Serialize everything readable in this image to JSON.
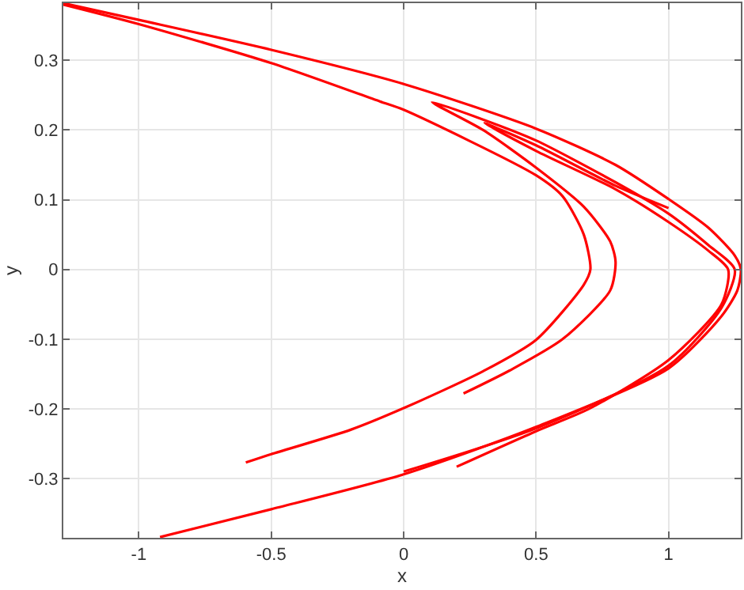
{
  "chart_data": {
    "type": "line",
    "xlabel": "x",
    "ylabel": "y",
    "xlim": [
      -1.285,
      1.273
    ],
    "ylim": [
      -0.385,
      0.382
    ],
    "xticks": [
      -1,
      -0.5,
      0,
      0.5,
      1
    ],
    "yticks": [
      -0.3,
      -0.2,
      -0.1,
      0,
      0.1,
      0.2,
      0.3
    ],
    "grid": true,
    "marker": "none",
    "line_style": "solid",
    "series": [
      {
        "color": "#ff0000",
        "x": [
          -1.285,
          -1,
          -0.5,
          0,
          0.5,
          0.8,
          1,
          1.15,
          1.25,
          1.273,
          1.26,
          1.2,
          1,
          0.5,
          0,
          -0.5,
          -0.92
        ],
        "values": [
          0.382,
          0.358,
          0.315,
          0.266,
          0.202,
          0.15,
          0.101,
          0.06,
          0.02,
          0,
          -0.03,
          -0.067,
          -0.142,
          -0.226,
          -0.294,
          -0.344,
          -0.384
        ]
      },
      {
        "color": "#ff0000",
        "x": [
          -1.285,
          -1,
          -0.5,
          -0.09,
          0,
          0.5,
          0.6,
          0.68,
          0.705,
          0.68,
          0.5,
          0.3,
          0,
          -0.2,
          -0.5,
          -0.596
        ],
        "values": [
          0.38,
          0.352,
          0.296,
          0.241,
          0.229,
          0.135,
          0.105,
          0.05,
          0,
          -0.022,
          -0.101,
          -0.146,
          -0.199,
          -0.23,
          -0.265,
          -0.277
        ]
      },
      {
        "color": "#ff0000",
        "x": [
          0,
          0.5,
          1,
          1.2,
          1.25,
          1.15,
          1,
          0.8,
          0.5,
          0.3,
          0.107,
          0.3,
          0.5,
          0.68,
          0.78,
          0.8,
          0.78,
          0.6,
          0.4,
          0.226
        ],
        "values": [
          -0.29,
          -0.228,
          -0.138,
          -0.055,
          0,
          0.035,
          0.08,
          0.125,
          0.185,
          0.215,
          0.24,
          0.2,
          0.146,
          0.09,
          0.04,
          0.011,
          -0.03,
          -0.1,
          -0.145,
          -0.178
        ]
      },
      {
        "color": "#ff0000",
        "x": [
          1.0,
          0.8,
          0.5,
          0.305,
          0.5,
          0.8,
          1.0,
          1.15,
          1.225,
          1.2,
          1.0,
          0.7,
          0.5,
          0.2
        ],
        "values": [
          0.088,
          0.12,
          0.178,
          0.21,
          0.17,
          0.115,
          0.068,
          0.027,
          0,
          -0.05,
          -0.13,
          -0.2,
          -0.232,
          -0.283
        ]
      }
    ]
  }
}
